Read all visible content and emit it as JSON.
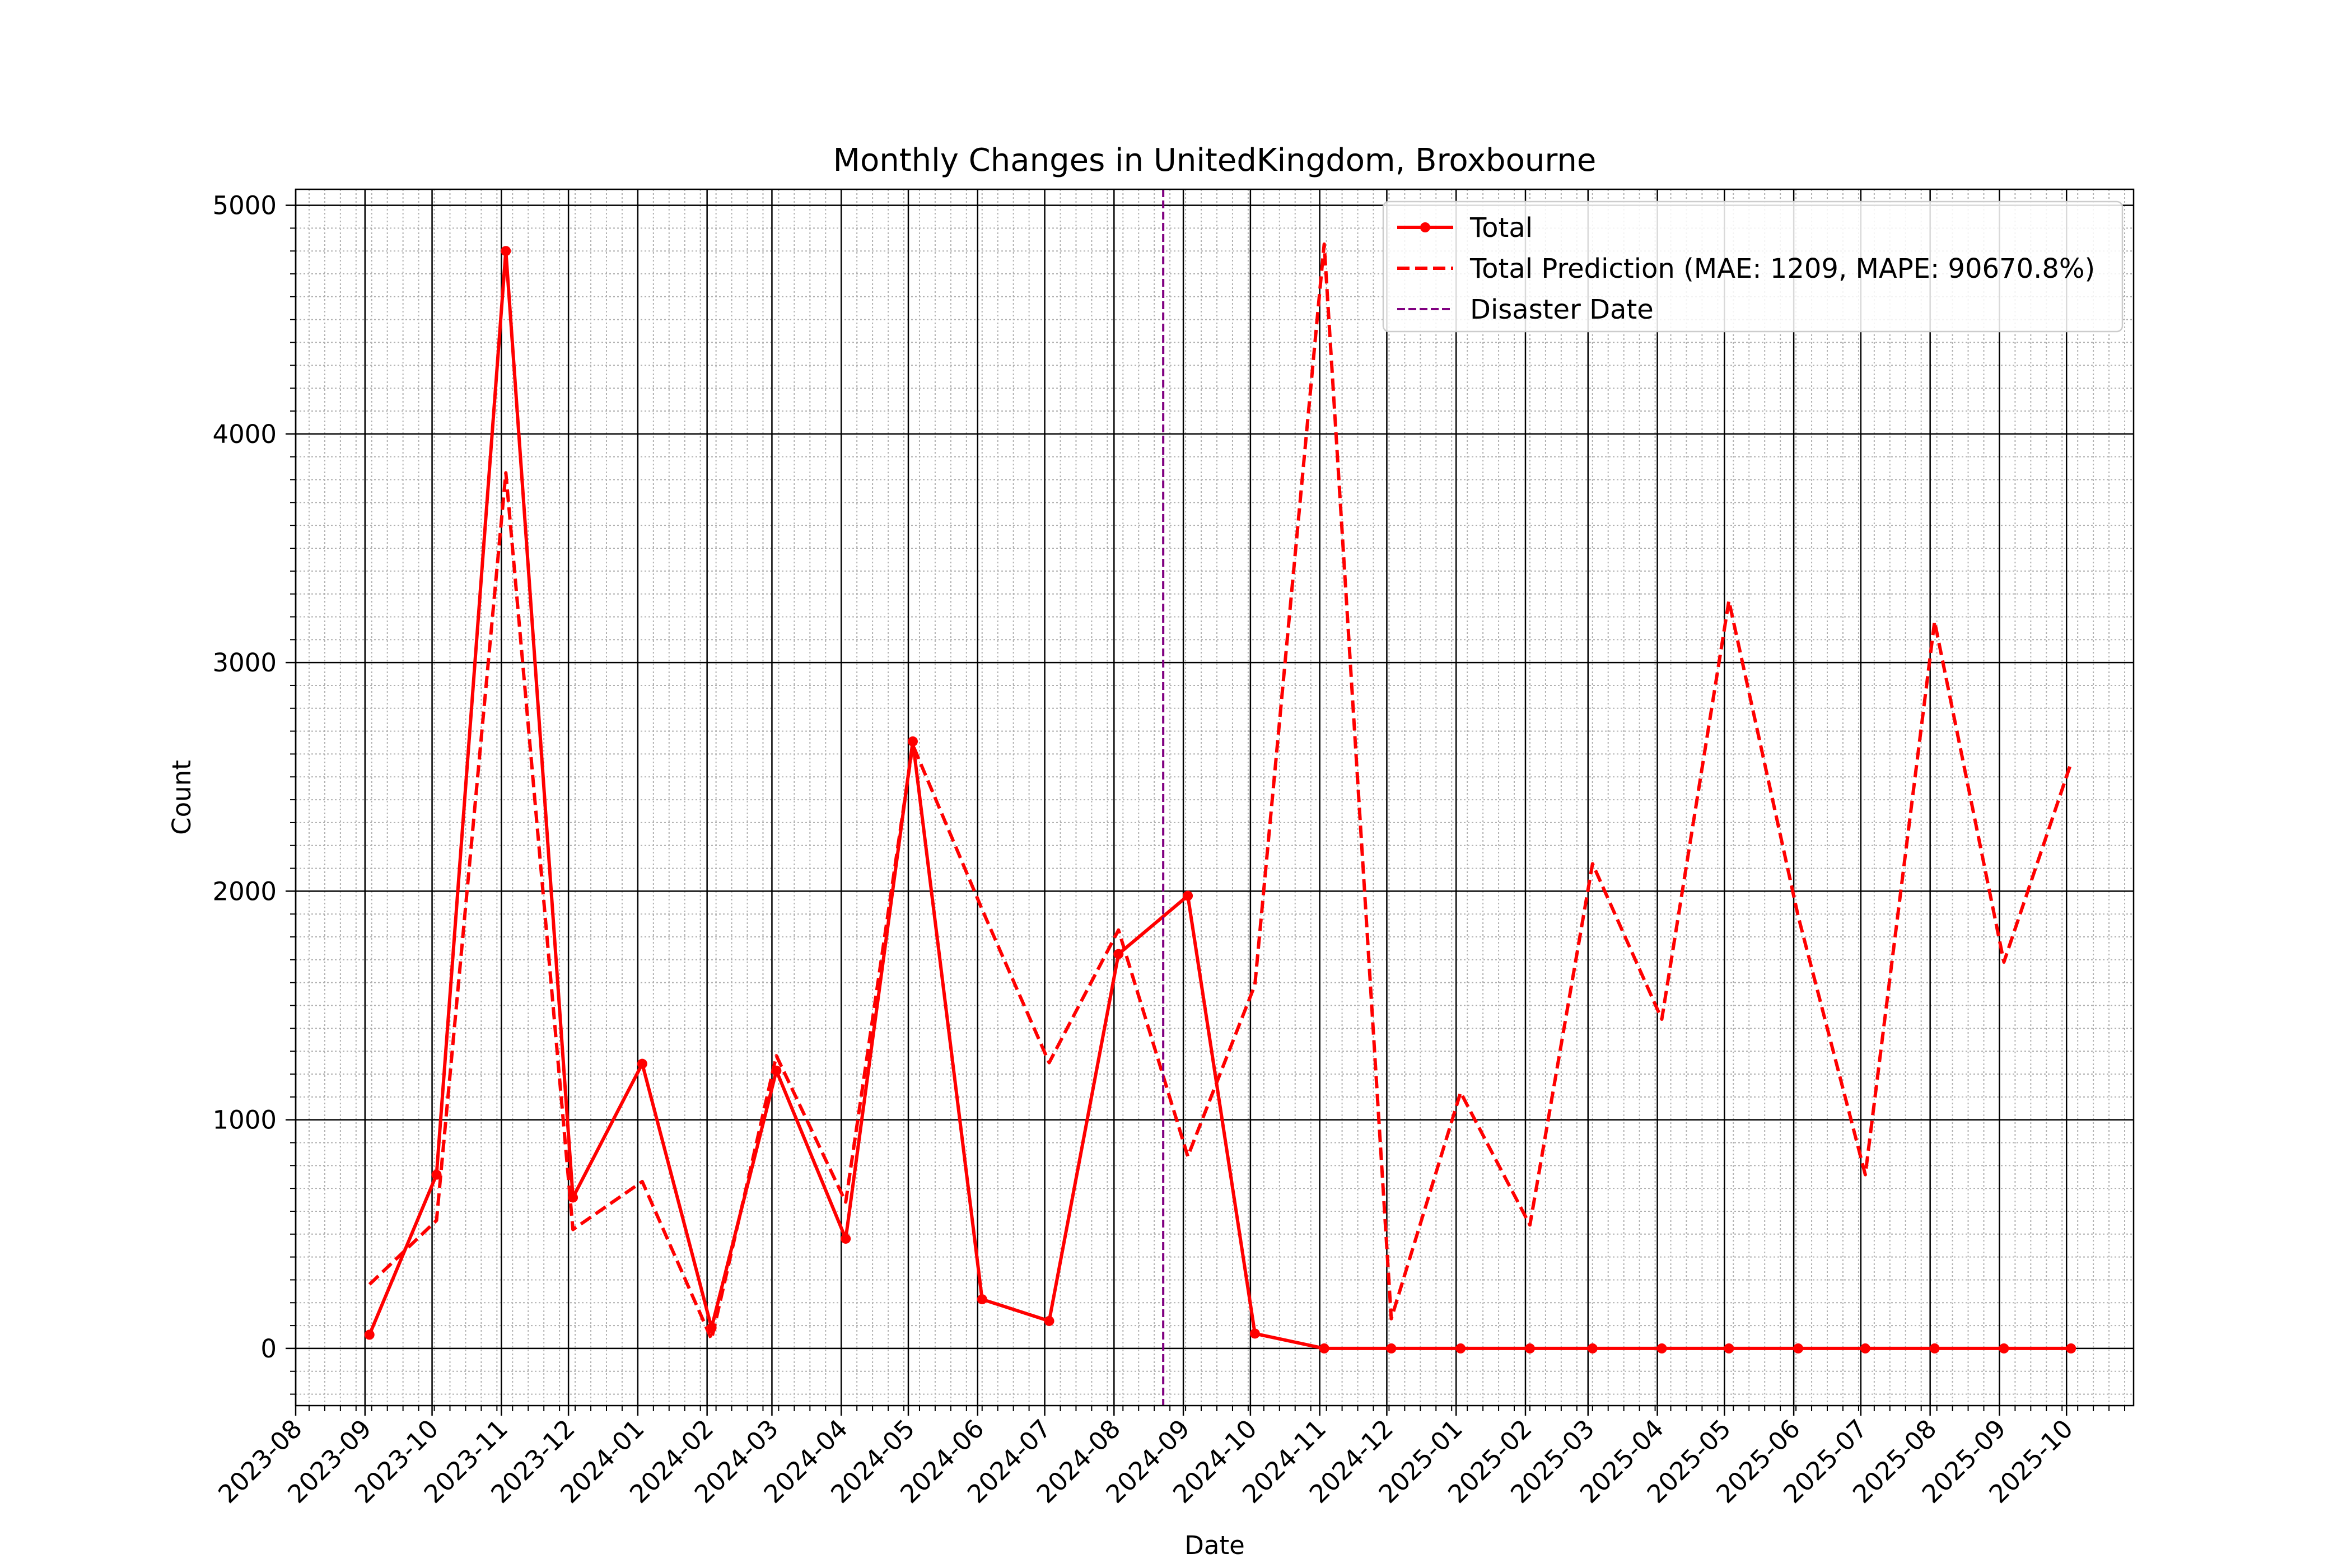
{
  "chart_data": {
    "type": "line",
    "title": "Monthly Changes in UnitedKingdom, Broxbourne",
    "xlabel": "Date",
    "ylabel": "Count",
    "ylim": [
      -250,
      5070
    ],
    "yticks": [
      0,
      1000,
      2000,
      3000,
      4000,
      5000
    ],
    "xlim": [
      "2023-08-01",
      "2025-10-31"
    ],
    "xticks": [
      "2023-08",
      "2023-09",
      "2023-10",
      "2023-11",
      "2023-12",
      "2024-01",
      "2024-02",
      "2024-03",
      "2024-04",
      "2024-05",
      "2024-06",
      "2024-07",
      "2024-08",
      "2024-09",
      "2024-10",
      "2024-11",
      "2024-12",
      "2025-01",
      "2025-02",
      "2025-03",
      "2025-04",
      "2025-05",
      "2025-06",
      "2025-07",
      "2025-08",
      "2025-09",
      "2025-10"
    ],
    "grid": true,
    "legend_position": "top-right",
    "disaster_date": "2024-08-23",
    "series": [
      {
        "name": "Total",
        "color": "#ff0000",
        "style": "solid",
        "marker": "circle",
        "x": [
          "2023-09-03",
          "2023-10-03",
          "2023-11-03",
          "2023-12-03",
          "2024-01-03",
          "2024-02-03",
          "2024-03-03",
          "2024-04-03",
          "2024-05-03",
          "2024-06-03",
          "2024-07-03",
          "2024-08-03",
          "2024-09-03",
          "2024-10-03",
          "2024-11-03",
          "2024-12-03",
          "2025-01-03",
          "2025-02-03",
          "2025-03-03",
          "2025-04-03",
          "2025-05-03",
          "2025-06-03",
          "2025-07-03",
          "2025-08-03",
          "2025-09-03",
          "2025-10-03"
        ],
        "y": [
          60,
          760,
          4800,
          660,
          1245,
          90,
          1215,
          480,
          2655,
          215,
          120,
          1725,
          1980,
          65,
          0,
          0,
          0,
          0,
          0,
          0,
          0,
          0,
          0,
          0,
          0,
          0
        ]
      },
      {
        "name": "Total Prediction (MAE: 1209, MAPE: 90670.8%)",
        "color": "#ff0000",
        "style": "dashed",
        "marker": "none",
        "x": [
          "2023-09-03",
          "2023-10-03",
          "2023-11-03",
          "2023-12-03",
          "2024-01-03",
          "2024-02-03",
          "2024-03-03",
          "2024-04-03",
          "2024-05-03",
          "2024-06-03",
          "2024-07-03",
          "2024-08-03",
          "2024-09-03",
          "2024-10-03",
          "2024-11-03",
          "2024-12-03",
          "2025-01-03",
          "2025-02-03",
          "2025-03-03",
          "2025-04-03",
          "2025-05-03",
          "2025-06-03",
          "2025-07-03",
          "2025-08-03",
          "2025-09-03",
          "2025-10-03"
        ],
        "y": [
          280,
          560,
          3830,
          520,
          730,
          40,
          1280,
          640,
          2640,
          1920,
          1250,
          1830,
          840,
          1590,
          4830,
          130,
          1120,
          540,
          2120,
          1440,
          3270,
          1890,
          760,
          3180,
          1690,
          2560
        ]
      },
      {
        "name": "Disaster Date",
        "color": "#800080",
        "style": "dashed",
        "marker": "none"
      }
    ]
  }
}
